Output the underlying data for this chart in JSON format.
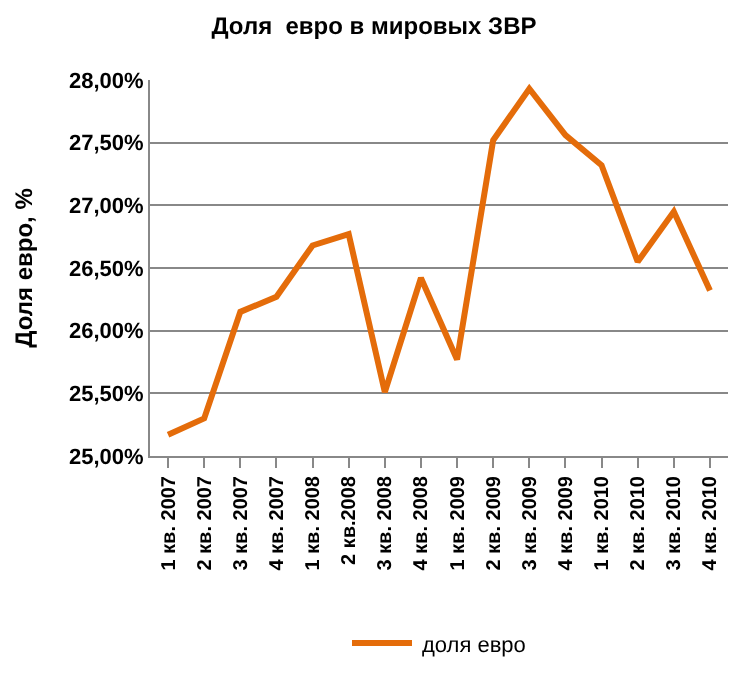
{
  "chart_data": {
    "type": "line",
    "title": "Доля  евро в мировых ЗВР",
    "ylabel": "Доля евро, %",
    "categories": [
      "1 кв. 2007",
      "2 кв. 2007",
      "3 кв. 2007",
      "4 кв. 2007",
      "1 кв. 2008",
      "2 кв.2008",
      "3 кв. 2008",
      "4 кв. 2008",
      "1 кв. 2009",
      "2 кв. 2009",
      "3 кв. 2009",
      "4 кв. 2009",
      "1 кв. 2010",
      "2 кв. 2010",
      "3 кв. 2010",
      "4 кв. 2010"
    ],
    "series": [
      {
        "name": "доля евро",
        "color": "#e46c0a",
        "values": [
          25.17,
          25.3,
          26.15,
          26.27,
          26.68,
          26.77,
          25.51,
          26.42,
          25.77,
          27.52,
          27.93,
          27.56,
          27.32,
          26.55,
          26.95,
          26.32
        ]
      }
    ],
    "ylim": [
      25,
      28
    ],
    "yticks": [
      {
        "value": 25,
        "label": "25,00%"
      },
      {
        "value": 25.5,
        "label": "25,50%"
      },
      {
        "value": 26,
        "label": "26,00%"
      },
      {
        "value": 26.5,
        "label": "26,50%"
      },
      {
        "value": 27,
        "label": "27,00%"
      },
      {
        "value": 27.5,
        "label": "27,50%"
      },
      {
        "value": 28,
        "label": "28,00%"
      }
    ],
    "grid": "y",
    "legend": "bottom",
    "marker": "none",
    "line_style": "solid"
  }
}
